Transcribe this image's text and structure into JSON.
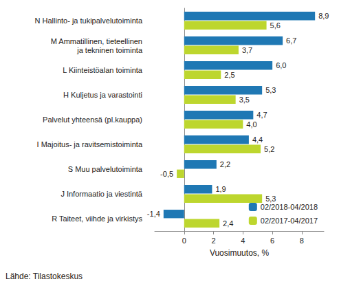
{
  "chart_data": {
    "type": "bar",
    "orientation": "horizontal",
    "x_label": "Vuosimuutos, %",
    "source": "Lähde: Tilastokeskus",
    "categories": [
      "N Hallinto- ja tukipalvelutoiminta",
      "M Ammatillinen, tieteellinen\nja tekninen toiminta",
      "L Kiinteistöalan toiminta",
      "H Kuljetus ja varastointi",
      "Palvelut yhteensä (pl.kauppa)",
      "I Majoitus- ja ravitsemistoiminta",
      "S Muu palvelutoiminta",
      "J Informaatio ja viestintä",
      "R Taiteet, viihde ja virkistys"
    ],
    "series": [
      {
        "name": "02/2018-04/2018",
        "color": "#1f78b4",
        "values": [
          8.9,
          6.7,
          6.0,
          5.3,
          4.7,
          4.4,
          2.2,
          1.9,
          -1.4
        ],
        "value_labels": [
          "8,9",
          "6,7",
          "6,0",
          "5,3",
          "4,7",
          "4,4",
          "2,2",
          "1,9",
          "-1,4"
        ]
      },
      {
        "name": "02/2017-04/2017",
        "color": "#bdd62e",
        "values": [
          5.6,
          3.7,
          2.5,
          3.5,
          4.0,
          5.2,
          -0.5,
          5.3,
          2.4
        ],
        "value_labels": [
          "5,6",
          "3,7",
          "2,5",
          "3,5",
          "4,0",
          "5,2",
          "-0,5",
          "5,3",
          "2,4"
        ]
      }
    ],
    "xlim": [
      -2,
      9.5
    ],
    "xticks": [
      0,
      2,
      4,
      6,
      8
    ],
    "grid": false,
    "legend": "bottom right",
    "data_labels": true
  }
}
